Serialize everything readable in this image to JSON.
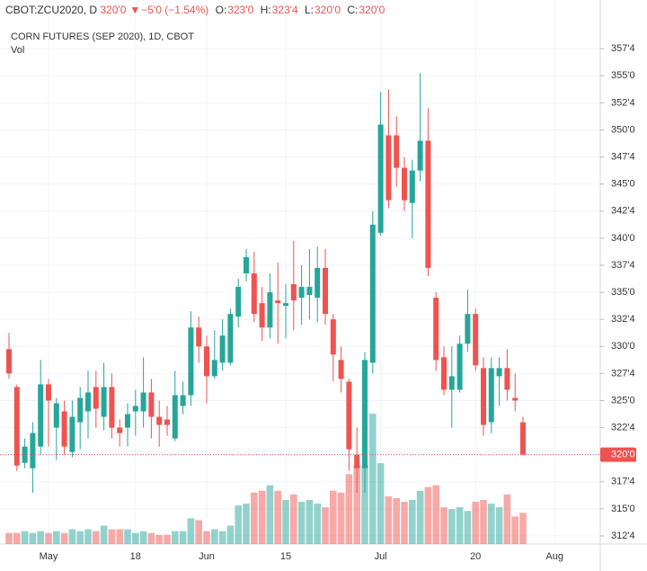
{
  "header": {
    "symbol": "CBOT:ZCU2020, D",
    "last": "320'0",
    "arrow": "▼",
    "change": "−5'0 (−1.54%)",
    "open_key": "O:",
    "open": "323'0",
    "high_key": "H:",
    "high": "323'4",
    "low_key": "L:",
    "low": "320'0",
    "close_key": "C:",
    "close": "320'0"
  },
  "chart_data": {
    "type": "candlestick",
    "title": "CORN FUTURES (SEP 2020), 1D, CBOT",
    "volume_label": "Vol",
    "up_color": "#26a69a",
    "down_color": "#ef5350",
    "grid": true,
    "categories": [
      null,
      null,
      null,
      null,
      null,
      "May",
      null,
      null,
      null,
      null,
      null,
      null,
      null,
      null,
      null,
      null,
      "18",
      null,
      null,
      null,
      null,
      null,
      null,
      null,
      null,
      "Jun",
      null,
      null,
      null,
      null,
      null,
      null,
      null,
      null,
      null,
      "15",
      null,
      null,
      null,
      null,
      null,
      null,
      null,
      null,
      null,
      null,
      null,
      "Jul",
      null,
      null,
      null,
      null,
      null,
      null,
      null,
      null,
      null,
      null,
      null,
      "20",
      null,
      null,
      null,
      null,
      null,
      null,
      null,
      null,
      null,
      "Aug"
    ],
    "open": [
      329.75,
      326.25,
      319.25,
      318.75,
      320.75,
      326.5,
      322.5,
      324,
      320.25,
      323,
      324,
      326.25,
      323.5,
      326.25,
      322.5,
      322.5,
      324,
      324,
      325.75,
      323.5,
      323.25,
      321.5,
      324.5,
      325.5,
      331.75,
      330,
      327.25,
      328.5,
      328.5,
      332.75,
      336.75,
      336.75,
      334,
      331.75,
      334.25,
      333.75,
      335.75,
      334.5,
      334.75,
      334.5,
      337.25,
      332.5,
      328.75,
      326.75,
      320,
      318.75,
      328.5,
      340.5,
      349.5,
      349.5,
      346.5,
      343.25,
      346.25,
      349,
      334.5,
      329,
      326,
      326,
      330.25,
      333,
      328,
      323,
      327.25,
      328,
      325.25,
      323,
      null,
      null,
      null,
      null
    ],
    "high": [
      331.25,
      326.5,
      321.5,
      323,
      328.75,
      327,
      325.25,
      325,
      325,
      326.25,
      327.75,
      327.75,
      328.5,
      327.5,
      323.25,
      324.75,
      326,
      329,
      327,
      325,
      324.5,
      327.75,
      326.75,
      333.25,
      332.75,
      331,
      331.5,
      332.5,
      333.5,
      336.25,
      339,
      338.75,
      335.5,
      336.75,
      337.75,
      335.75,
      339.75,
      337.5,
      339,
      339.25,
      339,
      333,
      330,
      327,
      322.5,
      329.5,
      342.5,
      353.5,
      353.75,
      351.25,
      347.5,
      347.25,
      355.25,
      352,
      335,
      330,
      330,
      331,
      335.25,
      333.5,
      329,
      329,
      329,
      329.75,
      327.5,
      323.5,
      null,
      null,
      null,
      null
    ],
    "low": [
      327,
      318.5,
      318.75,
      316.5,
      320,
      320.75,
      319.5,
      320,
      319.75,
      320.5,
      321.5,
      322.5,
      322.25,
      321.5,
      320.75,
      320.75,
      321.75,
      322.5,
      321.5,
      320.75,
      321.75,
      321.25,
      323.75,
      324.5,
      328.5,
      324.75,
      327,
      327.75,
      328.25,
      331.75,
      336,
      332.25,
      330.5,
      330.75,
      330.25,
      330.75,
      331.5,
      332,
      332.5,
      332.25,
      332,
      326.75,
      325.75,
      318.5,
      316.5,
      316.5,
      327.5,
      340.25,
      342.75,
      344.75,
      342.5,
      340,
      345.25,
      336.5,
      327.75,
      325.5,
      322.5,
      325.75,
      329.5,
      327.75,
      321.75,
      322,
      324.5,
      325,
      324,
      320,
      null,
      null,
      null,
      null
    ],
    "close": [
      327.5,
      319,
      320.75,
      322,
      326.5,
      325,
      324.75,
      320.75,
      323.5,
      325.25,
      325.75,
      324.25,
      326.25,
      322.5,
      322,
      323.75,
      324.5,
      325.75,
      323.5,
      322.75,
      322.75,
      325.5,
      325.5,
      331.75,
      330,
      327.25,
      328.75,
      331,
      333,
      335.5,
      338.25,
      333,
      331.75,
      335,
      334,
      334,
      334.25,
      335.5,
      335.5,
      337.25,
      333,
      329.25,
      327,
      320.5,
      318.75,
      328.75,
      341.25,
      350.5,
      343.5,
      346.5,
      343.5,
      346.25,
      349,
      337.25,
      328.75,
      326,
      327.25,
      330.25,
      333,
      328.25,
      322.75,
      328,
      328,
      326,
      325,
      320,
      null,
      null,
      null,
      null
    ],
    "volume": [
      12,
      12,
      14,
      12,
      14,
      12,
      14,
      12,
      16,
      14,
      16,
      14,
      20,
      16,
      16,
      16,
      12,
      14,
      12,
      10,
      10,
      14,
      14,
      28,
      26,
      14,
      16,
      14,
      20,
      42,
      44,
      56,
      58,
      64,
      58,
      48,
      54,
      46,
      48,
      44,
      40,
      58,
      56,
      76,
      86,
      86,
      142,
      88,
      52,
      50,
      46,
      48,
      58,
      62,
      64,
      40,
      38,
      40,
      36,
      46,
      48,
      44,
      40,
      54,
      30,
      34,
      null,
      null,
      null,
      null
    ],
    "ylim": [
      311.75,
      362
    ],
    "yticks": [
      {
        "value": 312.5,
        "label": "312'4"
      },
      {
        "value": 315,
        "label": "315'0"
      },
      {
        "value": 317.5,
        "label": "317'4"
      },
      {
        "value": 320,
        "label": "320'0"
      },
      {
        "value": 322.5,
        "label": "322'4"
      },
      {
        "value": 325,
        "label": "325'0"
      },
      {
        "value": 327.5,
        "label": "327'4"
      },
      {
        "value": 330,
        "label": "330'0"
      },
      {
        "value": 332.5,
        "label": "332'4"
      },
      {
        "value": 335,
        "label": "335'0"
      },
      {
        "value": 337.5,
        "label": "337'4"
      },
      {
        "value": 340,
        "label": "340'0"
      },
      {
        "value": 342.5,
        "label": "342'4"
      },
      {
        "value": 345,
        "label": "345'0"
      },
      {
        "value": 347.5,
        "label": "347'4"
      },
      {
        "value": 350,
        "label": "350'0"
      },
      {
        "value": 352.5,
        "label": "352'4"
      },
      {
        "value": 355,
        "label": "355'0"
      },
      {
        "value": 357.5,
        "label": "357'4"
      }
    ],
    "last_price": {
      "value": 320,
      "label": "320'0"
    }
  }
}
